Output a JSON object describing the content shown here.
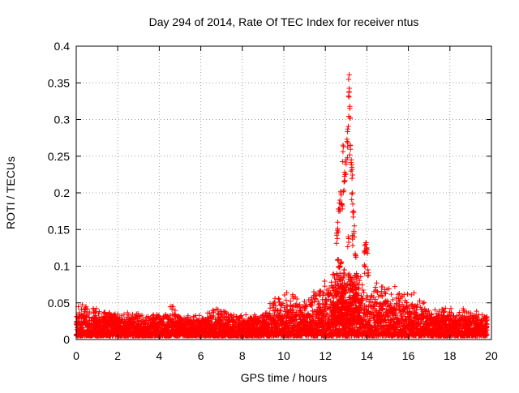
{
  "chart_data": {
    "type": "scatter",
    "title": "Day 294 of 2014, Rate Of TEC Index for receiver ntus",
    "xlabel": "GPS time / hours",
    "ylabel": "ROTI / TECUs",
    "xlim": [
      0,
      20
    ],
    "ylim": [
      0,
      0.4
    ],
    "grid": true,
    "marker": "+",
    "marker_color": "#ff0000",
    "x_ticks": [
      0,
      2,
      4,
      6,
      8,
      10,
      12,
      14,
      16,
      18,
      20
    ],
    "x_tick_labels": [
      "0",
      "2",
      "4",
      "6",
      "8",
      "10",
      "12",
      "14",
      "16",
      "18",
      "20"
    ],
    "y_ticks": [
      0,
      0.05,
      0.1,
      0.15,
      0.2,
      0.25,
      0.3,
      0.35,
      0.4
    ],
    "y_tick_labels": [
      "0",
      "0.05",
      "0.1",
      "0.15",
      "0.2",
      "0.25",
      "0.3",
      "0.35",
      "0.4"
    ],
    "series": [
      {
        "name": "ROTI",
        "description": "dense background cloud, approximate envelope per hour",
        "envelope": [
          {
            "x": 0,
            "y_min": 0.005,
            "y_max": 0.05
          },
          {
            "x": 1,
            "y_min": 0.005,
            "y_max": 0.043
          },
          {
            "x": 2,
            "y_min": 0.005,
            "y_max": 0.043
          },
          {
            "x": 3,
            "y_min": 0.005,
            "y_max": 0.035
          },
          {
            "x": 4,
            "y_min": 0.005,
            "y_max": 0.037
          },
          {
            "x": 4.6,
            "y_min": 0.005,
            "y_max": 0.052
          },
          {
            "x": 5,
            "y_min": 0.005,
            "y_max": 0.036
          },
          {
            "x": 6,
            "y_min": 0.005,
            "y_max": 0.035
          },
          {
            "x": 7,
            "y_min": 0.005,
            "y_max": 0.045
          },
          {
            "x": 8,
            "y_min": 0.005,
            "y_max": 0.035
          },
          {
            "x": 9,
            "y_min": 0.005,
            "y_max": 0.04
          },
          {
            "x": 10,
            "y_min": 0.005,
            "y_max": 0.072
          },
          {
            "x": 11,
            "y_min": 0.005,
            "y_max": 0.055
          },
          {
            "x": 12,
            "y_min": 0.005,
            "y_max": 0.085
          },
          {
            "x": 14,
            "y_min": 0.005,
            "y_max": 0.08
          },
          {
            "x": 15,
            "y_min": 0.005,
            "y_max": 0.075
          },
          {
            "x": 16,
            "y_min": 0.005,
            "y_max": 0.072
          },
          {
            "x": 17,
            "y_min": 0.005,
            "y_max": 0.045
          },
          {
            "x": 18,
            "y_min": 0.005,
            "y_max": 0.045
          },
          {
            "x": 19,
            "y_min": 0.005,
            "y_max": 0.042
          },
          {
            "x": 19.8,
            "y_min": 0.005,
            "y_max": 0.035
          }
        ],
        "peak_points": [
          {
            "x": 12.55,
            "y": 0.145
          },
          {
            "x": 12.6,
            "y": 0.16
          },
          {
            "x": 12.65,
            "y": 0.175
          },
          {
            "x": 12.7,
            "y": 0.19
          },
          {
            "x": 12.75,
            "y": 0.2
          },
          {
            "x": 12.8,
            "y": 0.185
          },
          {
            "x": 12.85,
            "y": 0.265
          },
          {
            "x": 12.9,
            "y": 0.215
          },
          {
            "x": 12.95,
            "y": 0.225
          },
          {
            "x": 13.0,
            "y": 0.245
          },
          {
            "x": 13.05,
            "y": 0.27
          },
          {
            "x": 13.08,
            "y": 0.287
          },
          {
            "x": 13.12,
            "y": 0.332
          },
          {
            "x": 13.15,
            "y": 0.361
          },
          {
            "x": 13.18,
            "y": 0.318
          },
          {
            "x": 13.2,
            "y": 0.265
          },
          {
            "x": 13.25,
            "y": 0.245
          },
          {
            "x": 13.28,
            "y": 0.235
          },
          {
            "x": 13.3,
            "y": 0.2
          },
          {
            "x": 13.35,
            "y": 0.175
          },
          {
            "x": 13.4,
            "y": 0.155
          },
          {
            "x": 12.7,
            "y": 0.1
          },
          {
            "x": 12.75,
            "y": 0.105
          },
          {
            "x": 12.9,
            "y": 0.095
          },
          {
            "x": 13.1,
            "y": 0.14
          },
          {
            "x": 13.3,
            "y": 0.14
          },
          {
            "x": 13.5,
            "y": 0.09
          },
          {
            "x": 13.9,
            "y": 0.128
          },
          {
            "x": 13.95,
            "y": 0.132
          },
          {
            "x": 14.0,
            "y": 0.125
          },
          {
            "x": 13.9,
            "y": 0.1
          },
          {
            "x": 14.05,
            "y": 0.095
          },
          {
            "x": 13.2,
            "y": 0.085
          },
          {
            "x": 12.6,
            "y": 0.108
          },
          {
            "x": 13.45,
            "y": 0.115
          }
        ]
      }
    ]
  }
}
